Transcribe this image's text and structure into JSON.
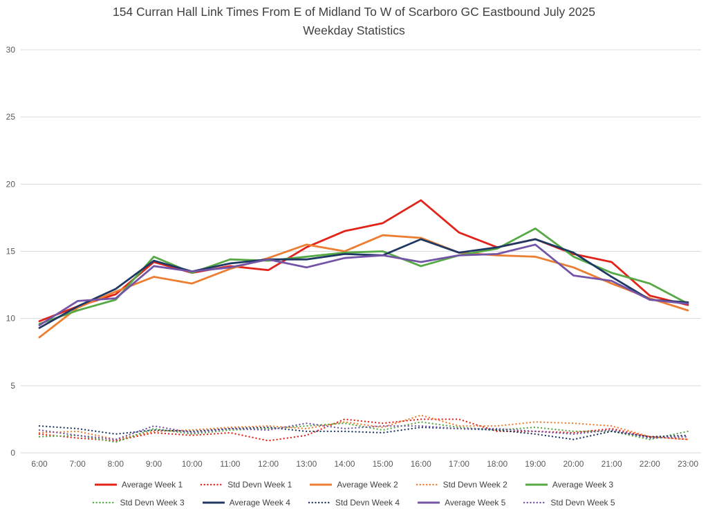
{
  "title": {
    "line1": "154 Curran Hall Link Times From E of Midland To W of Scarboro GC Eastbound July 2025",
    "line2": "Weekday Statistics"
  },
  "colors": {
    "grid": "#d9d9d9",
    "tick_text": "#595959",
    "title_text": "#404040",
    "week1": "#e2231a",
    "week2": "#ed7d31",
    "week3": "#56a944",
    "week4": "#1f3864",
    "week5": "#7454a6"
  },
  "chart_data": {
    "type": "line",
    "title": "154 Curran Hall Link Times From E of Midland To W of Scarboro GC Eastbound July 2025 Weekday Statistics",
    "xlabel": "",
    "ylabel": "",
    "ylim": [
      0,
      30
    ],
    "yticks": [
      0,
      5,
      10,
      15,
      20,
      25,
      30
    ],
    "grid": true,
    "legend_position": "bottom",
    "x": [
      "6:00",
      "7:00",
      "8:00",
      "9:00",
      "10:00",
      "11:00",
      "12:00",
      "13:00",
      "14:00",
      "15:00",
      "16:00",
      "17:00",
      "18:00",
      "19:00",
      "20:00",
      "21:00",
      "22:00",
      "23:00"
    ],
    "series": [
      {
        "name": "Average Week 1",
        "color": "#e2231a",
        "style": "solid",
        "values": [
          9.8,
          10.9,
          11.8,
          14.2,
          13.4,
          13.9,
          13.6,
          15.3,
          16.5,
          17.1,
          18.8,
          16.4,
          15.3,
          15.9,
          14.8,
          14.2,
          11.7,
          11.0
        ]
      },
      {
        "name": "Std Devn Week 1",
        "color": "#e2231a",
        "style": "dotted",
        "values": [
          1.4,
          1.1,
          0.9,
          1.5,
          1.3,
          1.5,
          0.9,
          1.3,
          2.5,
          2.2,
          2.5,
          2.5,
          1.6,
          1.6,
          1.5,
          1.8,
          1.2,
          1.0
        ]
      },
      {
        "name": "Average Week 2",
        "color": "#ed7d31",
        "style": "solid",
        "values": [
          8.6,
          10.8,
          12.0,
          13.1,
          12.6,
          13.7,
          14.5,
          15.5,
          15.0,
          16.2,
          16.0,
          14.9,
          14.7,
          14.6,
          13.8,
          12.6,
          11.5,
          10.6
        ]
      },
      {
        "name": "Std Devn Week 2",
        "color": "#ed7d31",
        "style": "dotted",
        "values": [
          1.5,
          1.6,
          1.0,
          1.6,
          1.7,
          1.9,
          2.0,
          1.8,
          2.3,
          1.9,
          2.8,
          2.0,
          2.0,
          2.3,
          2.2,
          2.0,
          1.2,
          1.0
        ]
      },
      {
        "name": "Average Week 3",
        "color": "#56a944",
        "style": "solid",
        "values": [
          9.6,
          10.6,
          11.4,
          14.6,
          13.4,
          14.4,
          14.3,
          14.6,
          14.9,
          15.0,
          13.9,
          14.7,
          15.2,
          16.7,
          14.6,
          13.4,
          12.6,
          11.1
        ]
      },
      {
        "name": "Std Devn Week 3",
        "color": "#56a944",
        "style": "dotted",
        "values": [
          1.2,
          1.3,
          0.8,
          1.8,
          1.4,
          1.7,
          1.8,
          2.0,
          2.2,
          1.7,
          2.3,
          1.9,
          1.7,
          1.9,
          1.6,
          1.6,
          1.0,
          1.6
        ]
      },
      {
        "name": "Average Week 4",
        "color": "#1f3864",
        "style": "solid",
        "values": [
          9.3,
          10.9,
          12.2,
          14.3,
          13.5,
          14.1,
          14.4,
          14.4,
          14.8,
          14.7,
          15.9,
          14.9,
          15.3,
          15.9,
          14.9,
          13.1,
          11.4,
          11.2
        ]
      },
      {
        "name": "Std Devn Week 4",
        "color": "#1f3864",
        "style": "dotted",
        "values": [
          2.0,
          1.8,
          1.4,
          1.7,
          1.6,
          1.8,
          1.9,
          1.6,
          1.6,
          1.5,
          1.9,
          1.8,
          1.7,
          1.4,
          1.0,
          1.6,
          1.2,
          1.3
        ]
      },
      {
        "name": "Average Week 5",
        "color": "#7454a6",
        "style": "solid",
        "values": [
          9.5,
          11.3,
          11.5,
          13.9,
          13.5,
          13.8,
          14.4,
          13.8,
          14.5,
          14.7,
          14.2,
          14.7,
          14.8,
          15.5,
          13.2,
          12.8,
          11.4,
          11.1
        ]
      },
      {
        "name": "Std Devn Week 5",
        "color": "#7454a6",
        "style": "dotted",
        "values": [
          1.7,
          1.3,
          1.0,
          2.0,
          1.5,
          1.8,
          1.7,
          2.2,
          1.8,
          2.0,
          2.0,
          1.8,
          1.8,
          1.6,
          1.4,
          1.7,
          1.1,
          1.2
        ]
      }
    ]
  }
}
